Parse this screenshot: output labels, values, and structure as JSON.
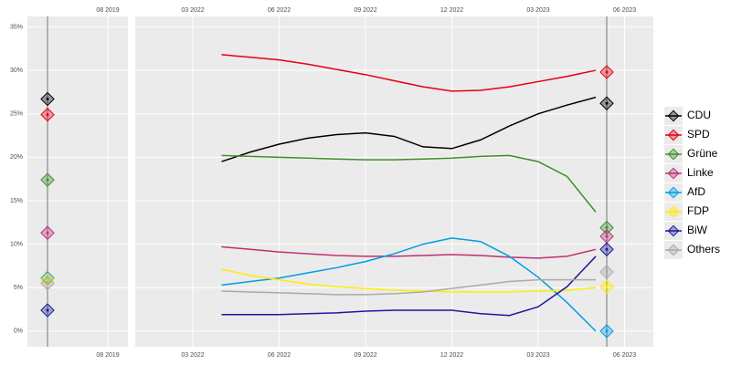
{
  "chart_data": {
    "type": "line",
    "ylim": [
      -1.8,
      36.2
    ],
    "yticks": [
      {
        "value": 0,
        "label": "0%"
      },
      {
        "value": 5,
        "label": "5%"
      },
      {
        "value": 10,
        "label": "10%"
      },
      {
        "value": 15,
        "label": "15%"
      },
      {
        "value": 20,
        "label": "20%"
      },
      {
        "value": 25,
        "label": "25%"
      },
      {
        "value": 30,
        "label": "30%"
      },
      {
        "value": 35,
        "label": "35%"
      }
    ],
    "grid": true,
    "legend": "right",
    "left_panel": {
      "xlim": [
        "2019-04",
        "2019-09"
      ],
      "xticks": [
        {
          "value": "2019-08",
          "label": "08 2019"
        }
      ],
      "election": "2019-05"
    },
    "xlim": [
      "2022-01",
      "2023-07"
    ],
    "xticks": [
      {
        "value": "2022-03",
        "label": "03 2022"
      },
      {
        "value": "2022-06",
        "label": "06 2022"
      },
      {
        "value": "2022-09",
        "label": "09 2022"
      },
      {
        "value": "2022-12",
        "label": "12 2022"
      },
      {
        "value": "2023-03",
        "label": "03 2023"
      },
      {
        "value": "2023-06",
        "label": "06 2023"
      }
    ],
    "election": "2023-05",
    "x": [
      "2022-04",
      "2022-05",
      "2022-06",
      "2022-07",
      "2022-08",
      "2022-09",
      "2022-10",
      "2022-11",
      "2022-12",
      "2023-01",
      "2023-02",
      "2023-03",
      "2023-04",
      "2023-05"
    ],
    "series": [
      {
        "name": "CDU",
        "color": "#000000",
        "values": [
          19.5,
          20.6,
          21.5,
          22.2,
          22.6,
          22.8,
          22.4,
          21.2,
          21.0,
          22.0,
          23.6,
          25.0,
          26.0,
          26.9
        ],
        "result_2019": 26.7,
        "result_2023": 26.2
      },
      {
        "name": "SPD",
        "color": "#e3000f",
        "values": [
          31.8,
          31.5,
          31.2,
          30.7,
          30.1,
          29.5,
          28.8,
          28.1,
          27.6,
          27.7,
          28.1,
          28.7,
          29.3,
          30.0
        ],
        "result_2019": 24.9,
        "result_2023": 29.8
      },
      {
        "name": "Grüne",
        "color": "#3f8f2a",
        "values": [
          20.2,
          20.1,
          20.0,
          19.9,
          19.8,
          19.7,
          19.7,
          19.8,
          19.9,
          20.1,
          20.2,
          19.5,
          17.8,
          13.7
        ],
        "result_2019": 17.4,
        "result_2023": 11.9
      },
      {
        "name": "Linke",
        "color": "#be3075",
        "values": [
          9.7,
          9.4,
          9.1,
          8.9,
          8.7,
          8.6,
          8.6,
          8.7,
          8.8,
          8.7,
          8.5,
          8.4,
          8.6,
          9.4
        ],
        "result_2019": 11.3,
        "result_2023": 10.9
      },
      {
        "name": "AfD",
        "color": "#009ee0",
        "values": [
          5.3,
          5.7,
          6.1,
          6.7,
          7.3,
          8.0,
          8.9,
          10.0,
          10.7,
          10.3,
          8.6,
          6.2,
          3.3,
          0.0
        ],
        "result_2019": 6.1,
        "result_2023": 0.0
      },
      {
        "name": "FDP",
        "color": "#ffed00",
        "values": [
          7.1,
          6.4,
          5.9,
          5.4,
          5.1,
          4.9,
          4.7,
          4.6,
          4.5,
          4.5,
          4.5,
          4.6,
          4.7,
          5.0
        ],
        "result_2019": 5.9,
        "result_2023": 5.1
      },
      {
        "name": "BiW",
        "color": "#1a1a9c",
        "values": [
          1.9,
          1.9,
          1.9,
          2.0,
          2.1,
          2.3,
          2.4,
          2.4,
          2.4,
          2.0,
          1.8,
          2.8,
          5.1,
          8.6
        ],
        "result_2019": 2.4,
        "result_2023": 9.4
      },
      {
        "name": "Others",
        "color": "#aaaaaa",
        "values": [
          4.6,
          4.5,
          4.4,
          4.3,
          4.2,
          4.2,
          4.3,
          4.5,
          4.9,
          5.3,
          5.7,
          5.9,
          5.9,
          5.9
        ],
        "result_2019": 5.5,
        "result_2023": 6.8
      }
    ]
  }
}
